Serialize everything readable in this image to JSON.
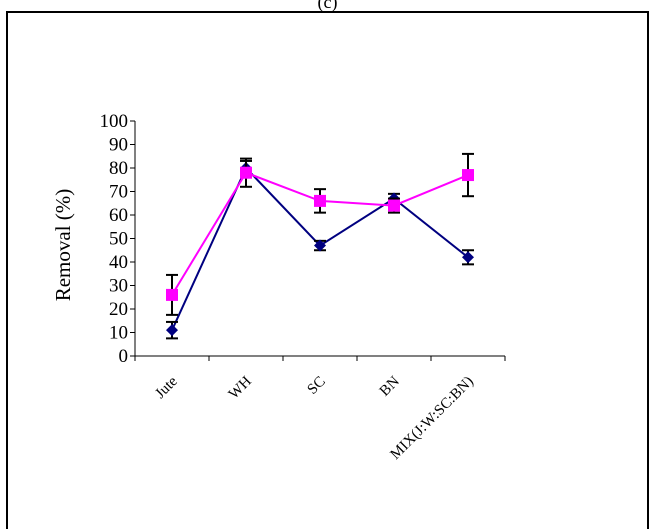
{
  "page": {
    "title": "(c)"
  },
  "chart_data": {
    "type": "line",
    "title": "",
    "xlabel": "",
    "ylabel": "Removal (%)",
    "ylim": [
      0,
      100
    ],
    "yticks": [
      0,
      10,
      20,
      30,
      40,
      50,
      60,
      70,
      80,
      90,
      100
    ],
    "categories": [
      "Jute",
      "WH",
      "SC",
      "BN",
      "MIX(J:W:SC:BN)"
    ],
    "grid": false,
    "legend": "none",
    "series": [
      {
        "color": "#000080",
        "marker": "diamond",
        "values": [
          11,
          80,
          47,
          67,
          42
        ],
        "errors": [
          3.5,
          3,
          2,
          2,
          3
        ]
      },
      {
        "color": "#ff00ff",
        "marker": "square",
        "values": [
          26,
          78,
          66,
          64,
          77
        ],
        "errors": [
          8.5,
          6,
          5,
          3,
          9
        ]
      }
    ]
  }
}
